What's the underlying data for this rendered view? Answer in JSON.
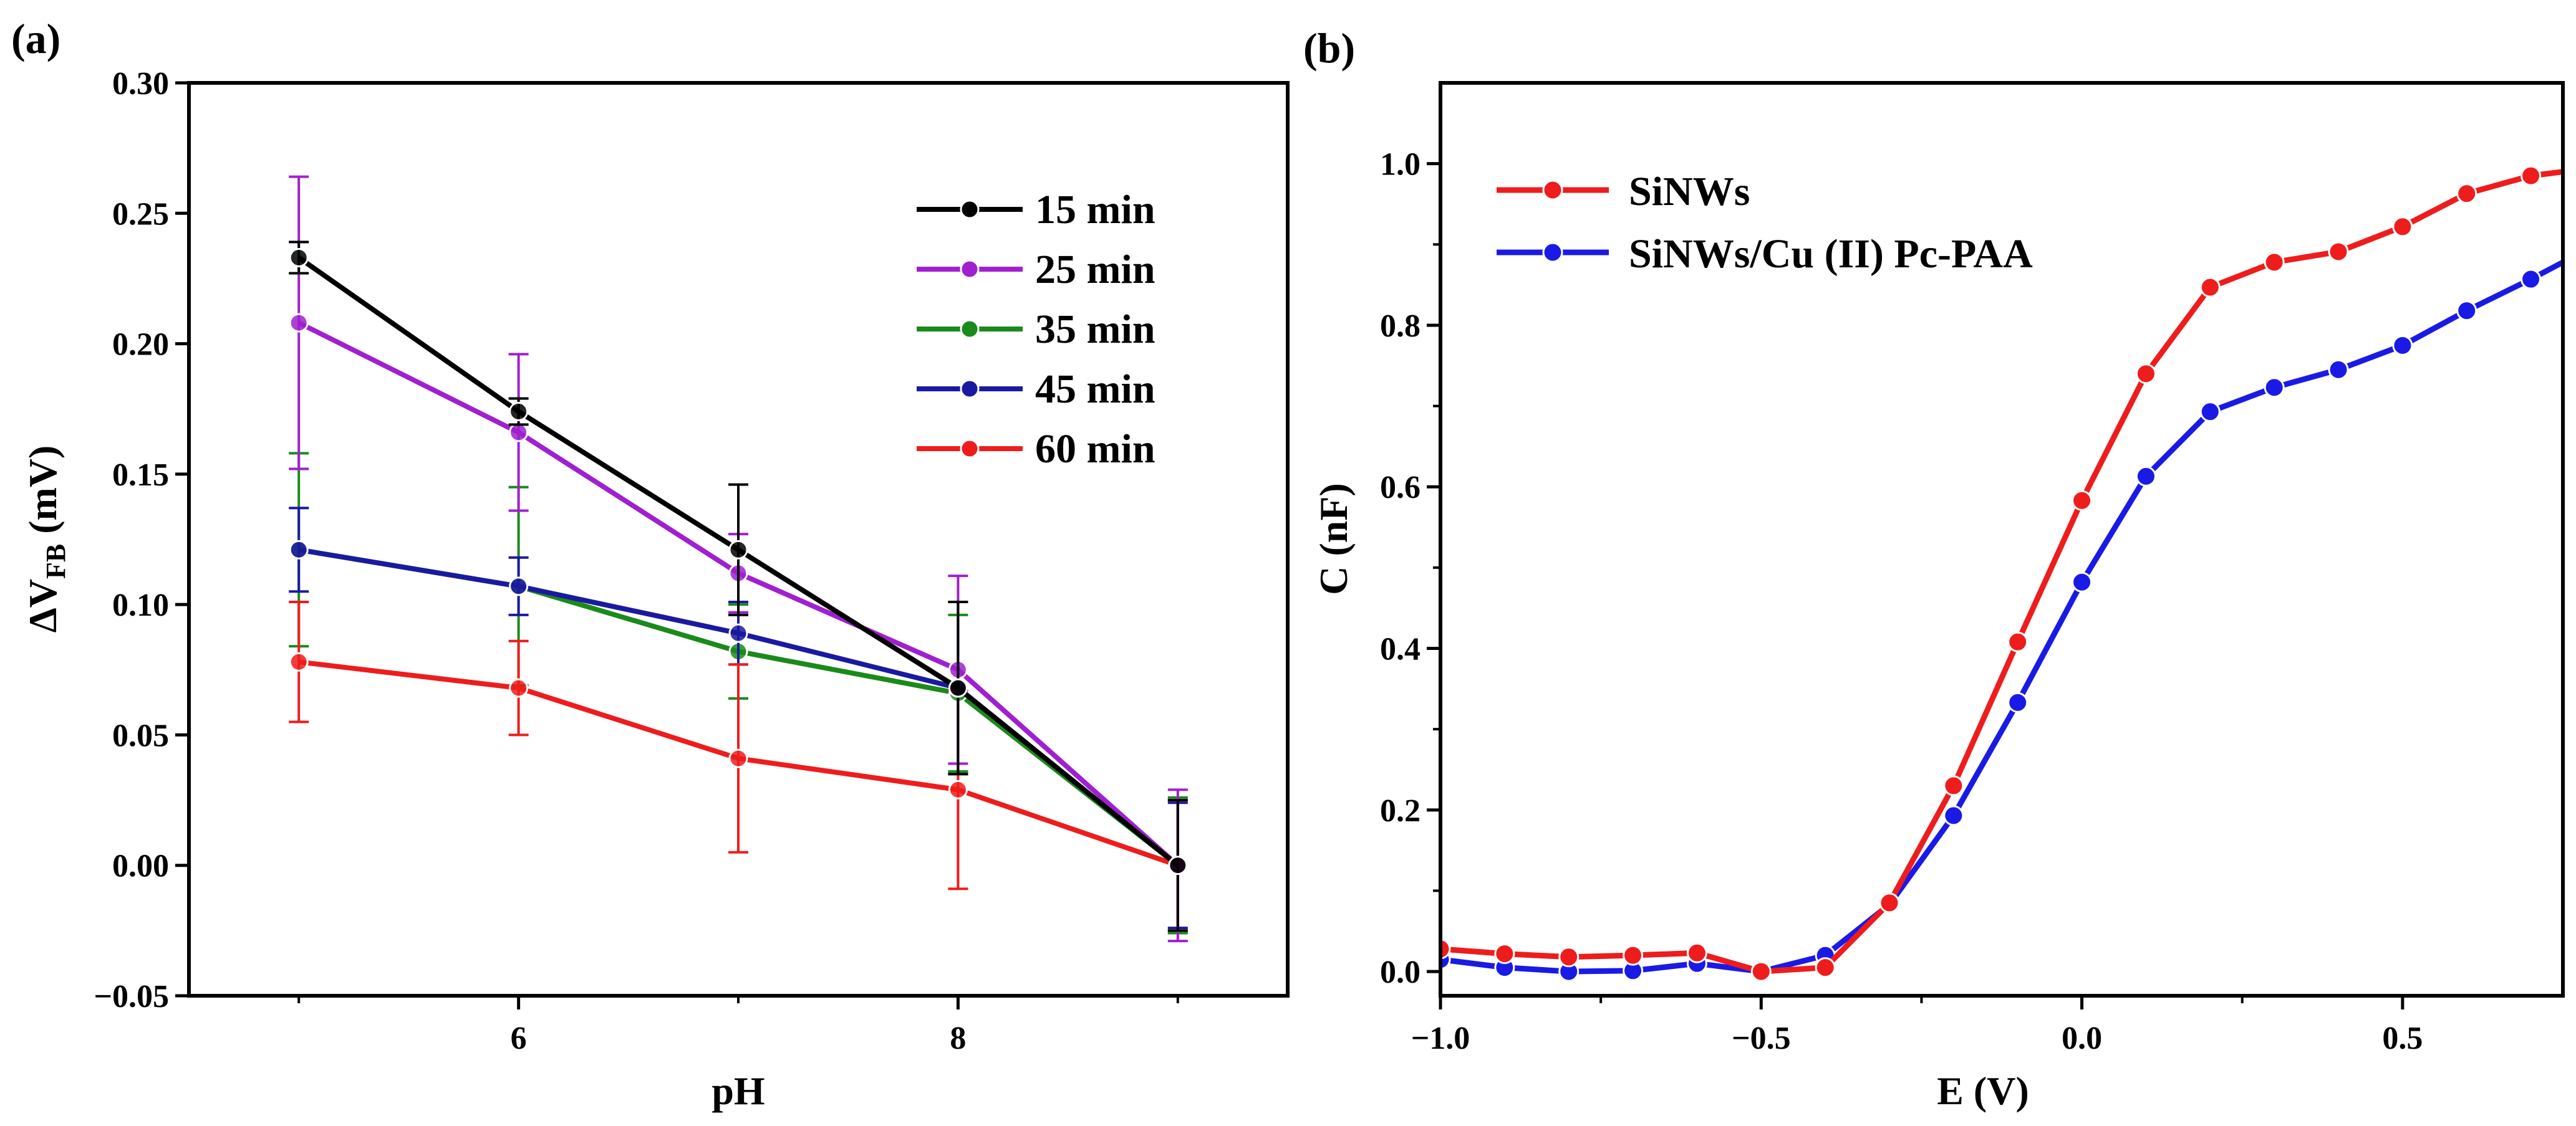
{
  "chart_data": [
    {
      "type": "line",
      "panel_label": "(a)",
      "xlabel": "pH",
      "ylabel_main": "ΔV",
      "ylabel_sub": "FB",
      "ylabel_unit": " (mV)",
      "xlim": [
        4.5,
        9.5
      ],
      "ylim": [
        -0.05,
        0.3
      ],
      "x_ticks": [
        6,
        8
      ],
      "y_ticks": [
        -0.05,
        0.0,
        0.05,
        0.1,
        0.15,
        0.2,
        0.25,
        0.3
      ],
      "y_tick_labels": [
        "−0.05",
        "0.00",
        "0.05",
        "0.10",
        "0.15",
        "0.20",
        "0.25",
        "0.30"
      ],
      "x_tick_labels": [
        "6",
        "8"
      ],
      "legend_position": "top-right",
      "x": [
        5,
        6,
        7,
        8,
        9
      ],
      "series": [
        {
          "name": "15 min",
          "color": "#000000",
          "values": [
            0.233,
            0.174,
            0.121,
            0.068,
            0.0
          ],
          "err": [
            0.006,
            0.005,
            0.025,
            0.033,
            0.025
          ]
        },
        {
          "name": "25 min",
          "color": "#a020d0",
          "values": [
            0.208,
            0.166,
            0.112,
            0.075,
            0.0
          ],
          "err": [
            0.056,
            0.03,
            0.015,
            0.036,
            0.029
          ]
        },
        {
          "name": "35 min",
          "color": "#1a8a1a",
          "values": [
            0.121,
            0.107,
            0.082,
            0.066,
            0.0
          ],
          "err": [
            0.037,
            0.038,
            0.018,
            0.03,
            0.026
          ]
        },
        {
          "name": "45 min",
          "color": "#1a1aa0",
          "values": [
            0.121,
            0.107,
            0.089,
            0.068,
            0.0
          ],
          "err": [
            0.016,
            0.011,
            0.012,
            0.033,
            0.024
          ]
        },
        {
          "name": "60 min",
          "color": "#ee1c1c",
          "values": [
            0.078,
            0.068,
            0.041,
            0.029,
            0.0
          ],
          "err": [
            0.023,
            0.018,
            0.036,
            0.038,
            0.025
          ]
        }
      ]
    },
    {
      "type": "line",
      "panel_label": "(b)",
      "xlabel": "E (V)",
      "ylabel": "C (nF)",
      "xlim": [
        -1.0,
        0.75
      ],
      "ylim": [
        -0.03,
        1.1
      ],
      "x_ticks": [
        -1.0,
        -0.5,
        0.0,
        0.5
      ],
      "x_tick_labels": [
        "−1.0",
        "−0.5",
        "0.0",
        "0.5"
      ],
      "y_ticks": [
        0.0,
        0.2,
        0.4,
        0.6,
        0.8,
        1.0
      ],
      "y_tick_labels": [
        "0.0",
        "0.2",
        "0.4",
        "0.6",
        "0.8",
        "1.0"
      ],
      "legend_position": "top-left",
      "series": [
        {
          "name": "SiNWs",
          "color": "#ee1c1c",
          "x": [
            -1.0,
            -0.9,
            -0.8,
            -0.7,
            -0.6,
            -0.5,
            -0.4,
            -0.3,
            -0.2,
            -0.1,
            0.0,
            0.1,
            0.2,
            0.3,
            0.4,
            0.5,
            0.6,
            0.7,
            0.75
          ],
          "y": [
            0.028,
            0.022,
            0.018,
            0.02,
            0.023,
            0.0,
            0.005,
            0.085,
            0.23,
            0.408,
            0.583,
            0.74,
            0.847,
            0.878,
            0.891,
            0.922,
            0.963,
            0.985,
            0.99
          ],
          "marker_count": 18
        },
        {
          "name": "SiNWs/Cu (II) Pc-PAA",
          "color": "#1a1ae6",
          "x": [
            -1.0,
            -0.9,
            -0.8,
            -0.7,
            -0.6,
            -0.5,
            -0.4,
            -0.3,
            -0.2,
            -0.1,
            0.0,
            0.1,
            0.2,
            0.3,
            0.4,
            0.5,
            0.6,
            0.7,
            0.75
          ],
          "y": [
            0.015,
            0.005,
            0.0,
            0.001,
            0.01,
            0.0,
            0.02,
            0.083,
            0.193,
            0.333,
            0.482,
            0.613,
            0.693,
            0.723,
            0.745,
            0.775,
            0.818,
            0.857,
            0.878
          ],
          "marker_count": 18
        }
      ]
    }
  ]
}
